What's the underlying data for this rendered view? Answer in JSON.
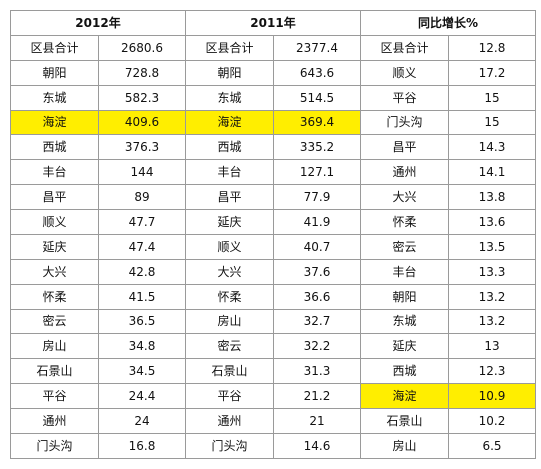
{
  "chart_data": {
    "type": "table",
    "groups": [
      {
        "title": "2012年",
        "rows": [
          {
            "district": "区县合计",
            "value": "2680.6"
          },
          {
            "district": "朝阳",
            "value": "728.8"
          },
          {
            "district": "东城",
            "value": "582.3"
          },
          {
            "district": "海淀",
            "value": "409.6",
            "highlight": true
          },
          {
            "district": "西城",
            "value": "376.3"
          },
          {
            "district": "丰台",
            "value": "144"
          },
          {
            "district": "昌平",
            "value": "89"
          },
          {
            "district": "顺义",
            "value": "47.7"
          },
          {
            "district": "延庆",
            "value": "47.4"
          },
          {
            "district": "大兴",
            "value": "42.8"
          },
          {
            "district": "怀柔",
            "value": "41.5"
          },
          {
            "district": "密云",
            "value": "36.5"
          },
          {
            "district": "房山",
            "value": "34.8"
          },
          {
            "district": "石景山",
            "value": "34.5"
          },
          {
            "district": "平谷",
            "value": "24.4"
          },
          {
            "district": "通州",
            "value": "24"
          },
          {
            "district": "门头沟",
            "value": "16.8"
          }
        ]
      },
      {
        "title": "2011年",
        "rows": [
          {
            "district": "区县合计",
            "value": "2377.4"
          },
          {
            "district": "朝阳",
            "value": "643.6"
          },
          {
            "district": "东城",
            "value": "514.5"
          },
          {
            "district": "海淀",
            "value": "369.4",
            "highlight": true
          },
          {
            "district": "西城",
            "value": "335.2"
          },
          {
            "district": "丰台",
            "value": "127.1"
          },
          {
            "district": "昌平",
            "value": "77.9"
          },
          {
            "district": "延庆",
            "value": "41.9"
          },
          {
            "district": "顺义",
            "value": "40.7"
          },
          {
            "district": "大兴",
            "value": "37.6"
          },
          {
            "district": "怀柔",
            "value": "36.6"
          },
          {
            "district": "房山",
            "value": "32.7"
          },
          {
            "district": "密云",
            "value": "32.2"
          },
          {
            "district": "石景山",
            "value": "31.3"
          },
          {
            "district": "平谷",
            "value": "21.2"
          },
          {
            "district": "通州",
            "value": "21"
          },
          {
            "district": "门头沟",
            "value": "14.6"
          }
        ]
      },
      {
        "title": "同比增长%",
        "rows": [
          {
            "district": "区县合计",
            "value": "12.8"
          },
          {
            "district": "顺义",
            "value": "17.2"
          },
          {
            "district": "平谷",
            "value": "15"
          },
          {
            "district": "门头沟",
            "value": "15"
          },
          {
            "district": "昌平",
            "value": "14.3"
          },
          {
            "district": "通州",
            "value": "14.1"
          },
          {
            "district": "大兴",
            "value": "13.8"
          },
          {
            "district": "怀柔",
            "value": "13.6"
          },
          {
            "district": "密云",
            "value": "13.5"
          },
          {
            "district": "丰台",
            "value": "13.3"
          },
          {
            "district": "朝阳",
            "value": "13.2"
          },
          {
            "district": "东城",
            "value": "13.2"
          },
          {
            "district": "延庆",
            "value": "13"
          },
          {
            "district": "西城",
            "value": "12.3"
          },
          {
            "district": "海淀",
            "value": "10.9",
            "highlight": true
          },
          {
            "district": "石景山",
            "value": "10.2"
          },
          {
            "district": "房山",
            "value": "6.5"
          }
        ]
      }
    ]
  },
  "colors": {
    "highlight": "#ffee00",
    "border": "#9a9a9a",
    "text": "#111111"
  }
}
